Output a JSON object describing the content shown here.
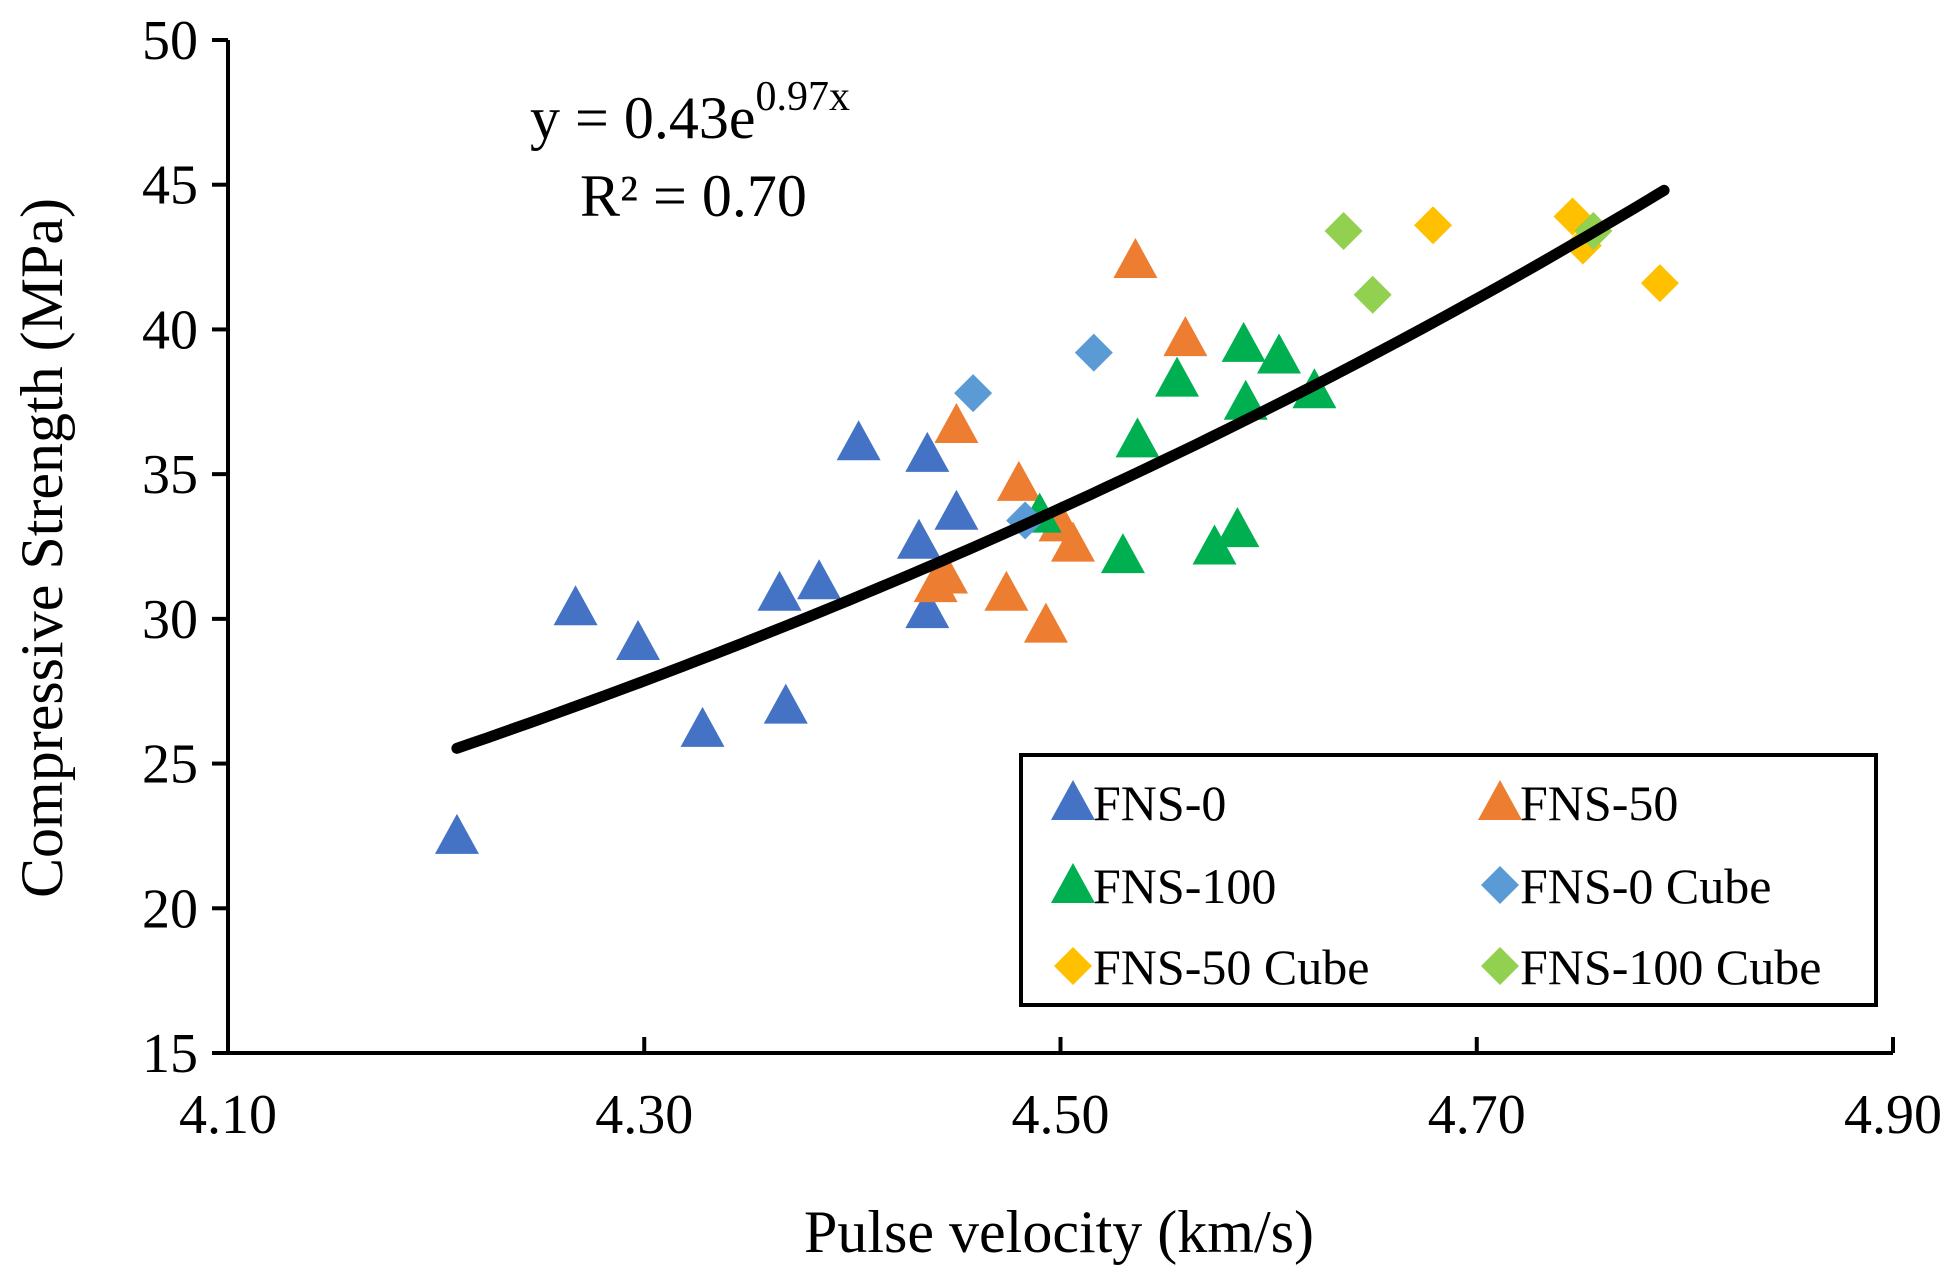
{
  "chart_data": {
    "type": "scatter",
    "title": "",
    "xlabel": "Pulse velocity (km/s)",
    "ylabel": "Compressive Strength (MPa)",
    "xlim": [
      4.1,
      4.9
    ],
    "ylim": [
      15,
      50
    ],
    "xticks": [
      4.1,
      4.3,
      4.5,
      4.7,
      4.9
    ],
    "xtick_labels": [
      "4.10",
      "4.30",
      "4.50",
      "4.70",
      "4.90"
    ],
    "yticks": [
      15,
      20,
      25,
      30,
      35,
      40,
      45,
      50
    ],
    "ytick_labels": [
      "15",
      "20",
      "25",
      "30",
      "35",
      "40",
      "45",
      "50"
    ],
    "grid": false,
    "legend_position": "bottom-right",
    "trendline": {
      "type": "exponential",
      "a": 0.43,
      "b": 0.97,
      "x_range": [
        4.21,
        4.79
      ],
      "color": "#000000",
      "equation": {
        "prefix": "y = 0.43e",
        "exponent": "0.97x",
        "r2": "R² = 0.70"
      }
    },
    "series": [
      {
        "name": "FNS-0",
        "marker": "triangle",
        "color": "#4472C4",
        "points": [
          [
            4.21,
            22.5
          ],
          [
            4.267,
            30.4
          ],
          [
            4.297,
            29.2
          ],
          [
            4.328,
            26.2
          ],
          [
            4.365,
            30.9
          ],
          [
            4.368,
            27.0
          ],
          [
            4.384,
            31.3
          ],
          [
            4.403,
            36.1
          ],
          [
            4.432,
            32.7
          ],
          [
            4.436,
            35.7
          ],
          [
            4.436,
            30.3
          ],
          [
            4.45,
            33.7
          ]
        ]
      },
      {
        "name": "FNS-50",
        "marker": "triangle",
        "color": "#ED7D31",
        "points": [
          [
            4.44,
            31.2
          ],
          [
            4.445,
            31.5
          ],
          [
            4.45,
            36.7
          ],
          [
            4.474,
            30.9
          ],
          [
            4.48,
            34.7
          ],
          [
            4.493,
            29.8
          ],
          [
            4.5,
            33.3
          ],
          [
            4.506,
            32.6
          ],
          [
            4.536,
            42.4
          ],
          [
            4.56,
            39.7
          ]
        ]
      },
      {
        "name": "FNS-100",
        "marker": "triangle",
        "color": "#00B050",
        "points": [
          [
            4.49,
            33.6
          ],
          [
            4.53,
            32.2
          ],
          [
            4.537,
            36.2
          ],
          [
            4.556,
            38.3
          ],
          [
            4.574,
            32.5
          ],
          [
            4.585,
            33.1
          ],
          [
            4.588,
            39.5
          ],
          [
            4.589,
            37.5
          ],
          [
            4.605,
            39.1
          ],
          [
            4.622,
            37.9
          ]
        ]
      },
      {
        "name": "FNS-0 Cube",
        "marker": "diamond",
        "color": "#5B9BD5",
        "points": [
          [
            4.458,
            37.8
          ],
          [
            4.483,
            33.4
          ],
          [
            4.516,
            39.2
          ]
        ]
      },
      {
        "name": "FNS-50 Cube",
        "marker": "diamond",
        "color": "#FFC000",
        "points": [
          [
            4.679,
            43.6
          ],
          [
            4.746,
            43.9
          ],
          [
            4.751,
            42.9
          ],
          [
            4.788,
            41.6
          ]
        ]
      },
      {
        "name": "FNS-100 Cube",
        "marker": "diamond",
        "color": "#92D050",
        "points": [
          [
            4.636,
            43.4
          ],
          [
            4.65,
            41.2
          ],
          [
            4.756,
            43.4
          ]
        ]
      }
    ]
  }
}
